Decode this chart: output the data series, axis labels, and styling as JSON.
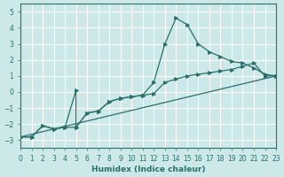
{
  "xlabel": "Humidex (Indice chaleur)",
  "xlim": [
    0,
    23
  ],
  "ylim": [
    -3.5,
    5.5
  ],
  "yticks": [
    -3,
    -2,
    -1,
    0,
    1,
    2,
    3,
    4,
    5
  ],
  "xticks": [
    0,
    1,
    2,
    3,
    4,
    5,
    6,
    7,
    8,
    9,
    10,
    11,
    12,
    13,
    14,
    15,
    16,
    17,
    18,
    19,
    20,
    21,
    22,
    23
  ],
  "bg_color": "#cce8e8",
  "grid_color": "#ffffff",
  "line_color": "#2a706e",
  "lines": [
    {
      "x": [
        0,
        1,
        2,
        3,
        4,
        5,
        5,
        6,
        7,
        8,
        9,
        10,
        11,
        12,
        13,
        14,
        15,
        16,
        17,
        18,
        19,
        20,
        21,
        22,
        23
      ],
      "y": [
        -2.8,
        -2.8,
        -2.1,
        -2.3,
        -2.2,
        0.1,
        -2.2,
        -1.3,
        -1.2,
        -0.6,
        -0.4,
        -0.3,
        -0.2,
        0.6,
        3.0,
        4.6,
        4.2,
        3.0,
        2.5,
        2.2,
        1.9,
        1.8,
        1.5,
        1.1,
        1.0
      ]
    },
    {
      "x": [
        0,
        1,
        2,
        3,
        4,
        5,
        6,
        7,
        8,
        9,
        10,
        11,
        12,
        13,
        14,
        15,
        16,
        17,
        18,
        19,
        20,
        21,
        22,
        23
      ],
      "y": [
        -2.8,
        -2.8,
        -2.1,
        -2.3,
        -2.2,
        -2.2,
        -1.3,
        -1.2,
        -0.6,
        -0.4,
        -0.3,
        -0.2,
        -0.1,
        0.6,
        0.8,
        1.0,
        1.1,
        1.2,
        1.3,
        1.4,
        1.6,
        1.8,
        1.0,
        1.0
      ]
    },
    {
      "x": [
        0,
        23
      ],
      "y": [
        -2.8,
        1.0
      ]
    }
  ]
}
